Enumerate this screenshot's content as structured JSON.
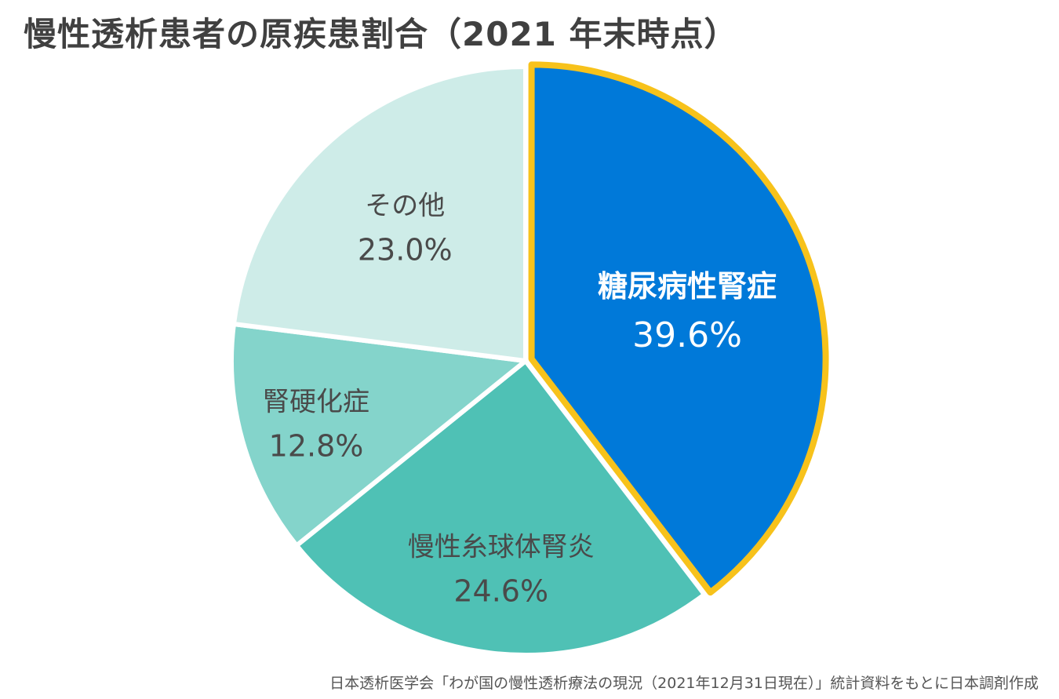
{
  "chart_data": {
    "type": "pie",
    "title": "慢性透析患者の原疾患割合（2021 年末時点）",
    "slices": [
      {
        "label": "糖尿病性腎症",
        "value": 39.6,
        "value_label": "39.6%",
        "color": "#0079d9",
        "text_color": "#ffffff",
        "highlight": true
      },
      {
        "label": "慢性糸球体腎炎",
        "value": 24.6,
        "value_label": "24.6%",
        "color": "#4fc1b5",
        "text_color": "#4a4a4a"
      },
      {
        "label": "腎硬化症",
        "value": 12.8,
        "value_label": "12.8%",
        "color": "#84d4cb",
        "text_color": "#4a4a4a"
      },
      {
        "label": "その他",
        "value": 23.0,
        "value_label": "23.0%",
        "color": "#ceece8",
        "text_color": "#4a4a4a"
      }
    ],
    "highlight_border_color": "#f7c21b",
    "source": "日本透析医学会「わが国の慢性透析療法の現況（2021年12月31日現在）」統計資料をもとに日本調剤作成"
  }
}
